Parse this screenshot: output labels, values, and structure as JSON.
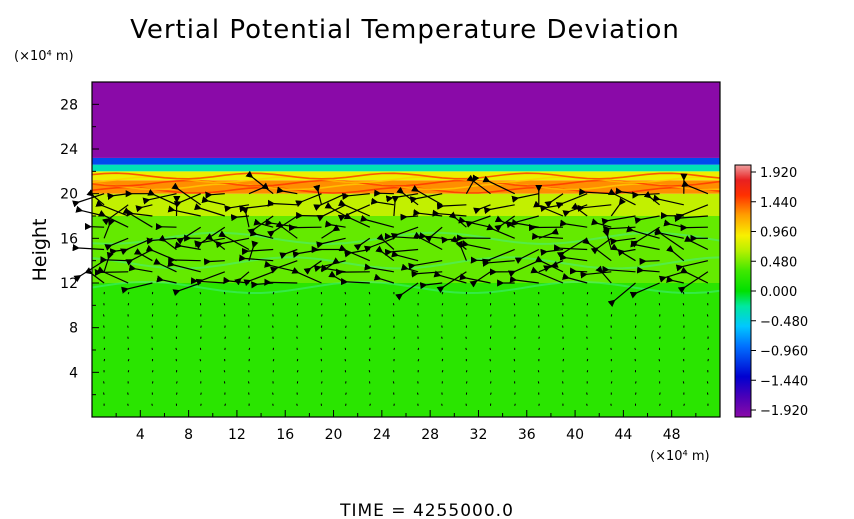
{
  "chart_data": {
    "type": "heatmap",
    "title": "Vertial Potential Temperature Deviation",
    "ylabel": "Height",
    "y_unit": "(×10⁴ m)",
    "x_unit": "(×10⁴ m)",
    "xlim": [
      0,
      52
    ],
    "ylim": [
      0,
      30
    ],
    "x_ticks": [
      "4",
      "8",
      "12",
      "16",
      "20",
      "24",
      "28",
      "32",
      "36",
      "40",
      "44",
      "48"
    ],
    "y_ticks": [
      "4",
      "8",
      "12",
      "16",
      "20",
      "24",
      "28"
    ],
    "colorbar": {
      "labels": [
        "1.920",
        "1.440",
        "0.960",
        "0.480",
        "0.000",
        "−0.480",
        "−0.960",
        "−1.440",
        "−1.920"
      ],
      "min": -1.92,
      "max": 1.92
    },
    "field_bands": [
      {
        "y_from": 0,
        "y_to": 12,
        "value": 0.2
      },
      {
        "y_from": 12,
        "y_to": 18,
        "value": 0.4
      },
      {
        "y_from": 18,
        "y_to": 20,
        "value": 0.65
      },
      {
        "y_from": 20,
        "y_to": 21.2,
        "value": 1.2
      },
      {
        "y_from": 21.2,
        "y_to": 22.0,
        "value": 0.8
      },
      {
        "y_from": 22.0,
        "y_to": 22.6,
        "value": -0.3
      },
      {
        "y_from": 22.6,
        "y_to": 23.2,
        "value": -1.0
      },
      {
        "y_from": 23.2,
        "y_to": 30,
        "value": -1.92
      }
    ],
    "wind_vectors_note": "",
    "time_label": "TIME  =  4255000.0"
  },
  "colors": {
    "background": "#ffffff",
    "axis": "#000000",
    "top_layer": "#9400a6"
  }
}
